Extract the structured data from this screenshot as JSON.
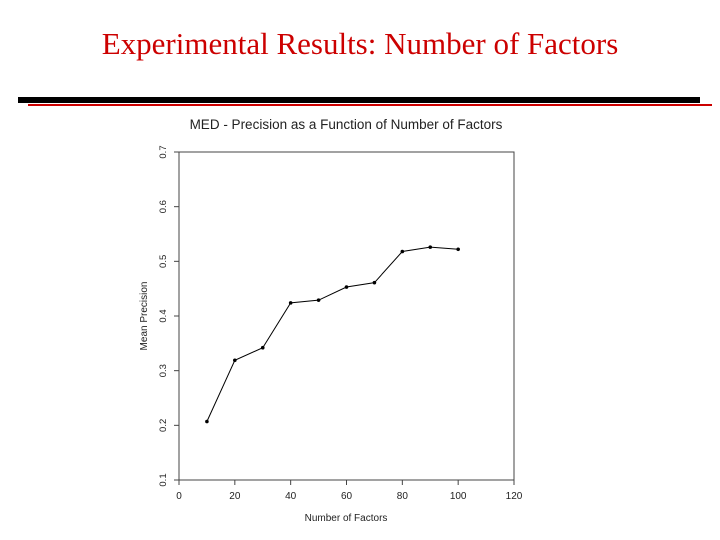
{
  "slide": {
    "title": "Experimental Results: Number of Factors",
    "title_color": "#cc0000",
    "rule_color": "#000000",
    "accent_rule_color": "#cc0000"
  },
  "chart_data": {
    "type": "line",
    "title": "MED - Precision as a Function of Number of Factors",
    "xlabel": "Number of Factors",
    "ylabel": "Mean Precision",
    "xlim": [
      0,
      120
    ],
    "ylim": [
      0.1,
      0.7
    ],
    "xticks": [
      0,
      20,
      40,
      60,
      80,
      100,
      120
    ],
    "xtick_labels": [
      "0",
      "20",
      "40",
      "60",
      "80",
      "100",
      "120"
    ],
    "yticks": [
      0.1,
      0.2,
      0.3,
      0.4,
      0.5,
      0.6,
      0.7
    ],
    "ytick_labels": [
      "0.1",
      "0.2",
      "0.3",
      "0.4",
      "0.5",
      "0.6",
      "0.7"
    ],
    "grid": false,
    "x": [
      10,
      20,
      30,
      40,
      50,
      60,
      70,
      80,
      90,
      100
    ],
    "y": [
      0.207,
      0.319,
      0.342,
      0.424,
      0.429,
      0.453,
      0.461,
      0.518,
      0.526,
      0.522
    ],
    "line_color": "#000000"
  }
}
